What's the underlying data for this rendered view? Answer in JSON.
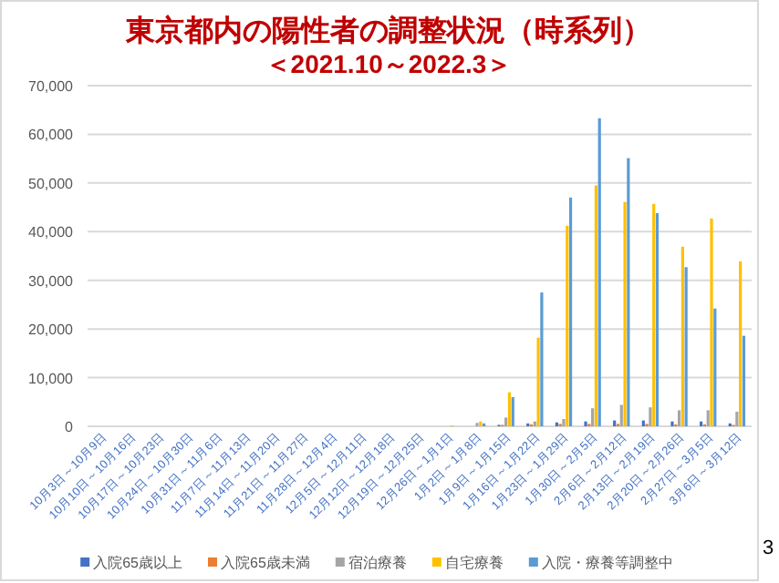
{
  "chart_data": {
    "type": "bar",
    "title": "東京都内の陽性者の調整状況（時系列）",
    "subtitle": "＜2021.10～2022.3＞",
    "categories": [
      "10月3日～10月9日",
      "10月10日～10月16日",
      "10月17日～10月23日",
      "10月24日～10月30日",
      "10月31日～11月6日",
      "11月7日～11月13日",
      "11月14日～11月20日",
      "11月21日～11月27日",
      "11月28日～12月4日",
      "12月5日～12月11日",
      "12月12日～12月18日",
      "12月19日～12月25日",
      "12月26日～1月1日",
      "1月2日～1月8日",
      "1月9日～1月15日",
      "1月16日～1月22日",
      "1月23日～1月29日",
      "1月30日～2月5日",
      "2月6日～2月12日",
      "2月13日～2月19日",
      "2月20日～2月26日",
      "2月27日～3月5日",
      "3月6日～3月12日"
    ],
    "series": [
      {
        "name": "入院65歳以上",
        "color": "#4472c4",
        "values": [
          0,
          0,
          0,
          0,
          0,
          0,
          0,
          0,
          0,
          0,
          0,
          0,
          0,
          null,
          300,
          600,
          800,
          1000,
          1200,
          1200,
          1000,
          1000,
          600
        ]
      },
      {
        "name": "入院65歳未満",
        "color": "#ed7d31",
        "values": [
          0,
          0,
          0,
          0,
          0,
          0,
          0,
          0,
          0,
          0,
          0,
          0,
          0,
          null,
          300,
          400,
          500,
          500,
          500,
          500,
          400,
          400,
          300
        ]
      },
      {
        "name": "宿泊療養",
        "color": "#a5a5a5",
        "values": [
          0,
          0,
          0,
          0,
          0,
          0,
          0,
          0,
          0,
          0,
          0,
          0,
          null,
          700,
          1800,
          1000,
          1500,
          3700,
          4400,
          3900,
          3300,
          3300,
          3000
        ]
      },
      {
        "name": "自宅療養",
        "color": "#ffc000",
        "values": [
          0,
          0,
          0,
          0,
          0,
          0,
          0,
          0,
          0,
          0,
          0,
          0,
          200,
          1000,
          7000,
          18200,
          41200,
          49500,
          46100,
          45700,
          36900,
          42700,
          33900
        ]
      },
      {
        "name": "入院・療養等調整中",
        "color": "#5b9bd5",
        "values": [
          0,
          0,
          0,
          0,
          0,
          0,
          0,
          0,
          0,
          0,
          0,
          0,
          null,
          600,
          6000,
          27500,
          47000,
          63300,
          55100,
          43800,
          32700,
          24200,
          18600
        ]
      }
    ],
    "ylim": [
      0,
      70000
    ],
    "yticks": [
      {
        "value": 0,
        "label": "0"
      },
      {
        "value": 10000,
        "label": "10,000"
      },
      {
        "value": 20000,
        "label": "20,000"
      },
      {
        "value": 30000,
        "label": "30,000"
      },
      {
        "value": 40000,
        "label": "40,000"
      },
      {
        "value": 50000,
        "label": "50,000"
      },
      {
        "value": 60000,
        "label": "60,000"
      },
      {
        "value": 70000,
        "label": "70,000"
      }
    ],
    "grid": "y",
    "legend": "bottom",
    "annotations": [
      "3"
    ]
  }
}
